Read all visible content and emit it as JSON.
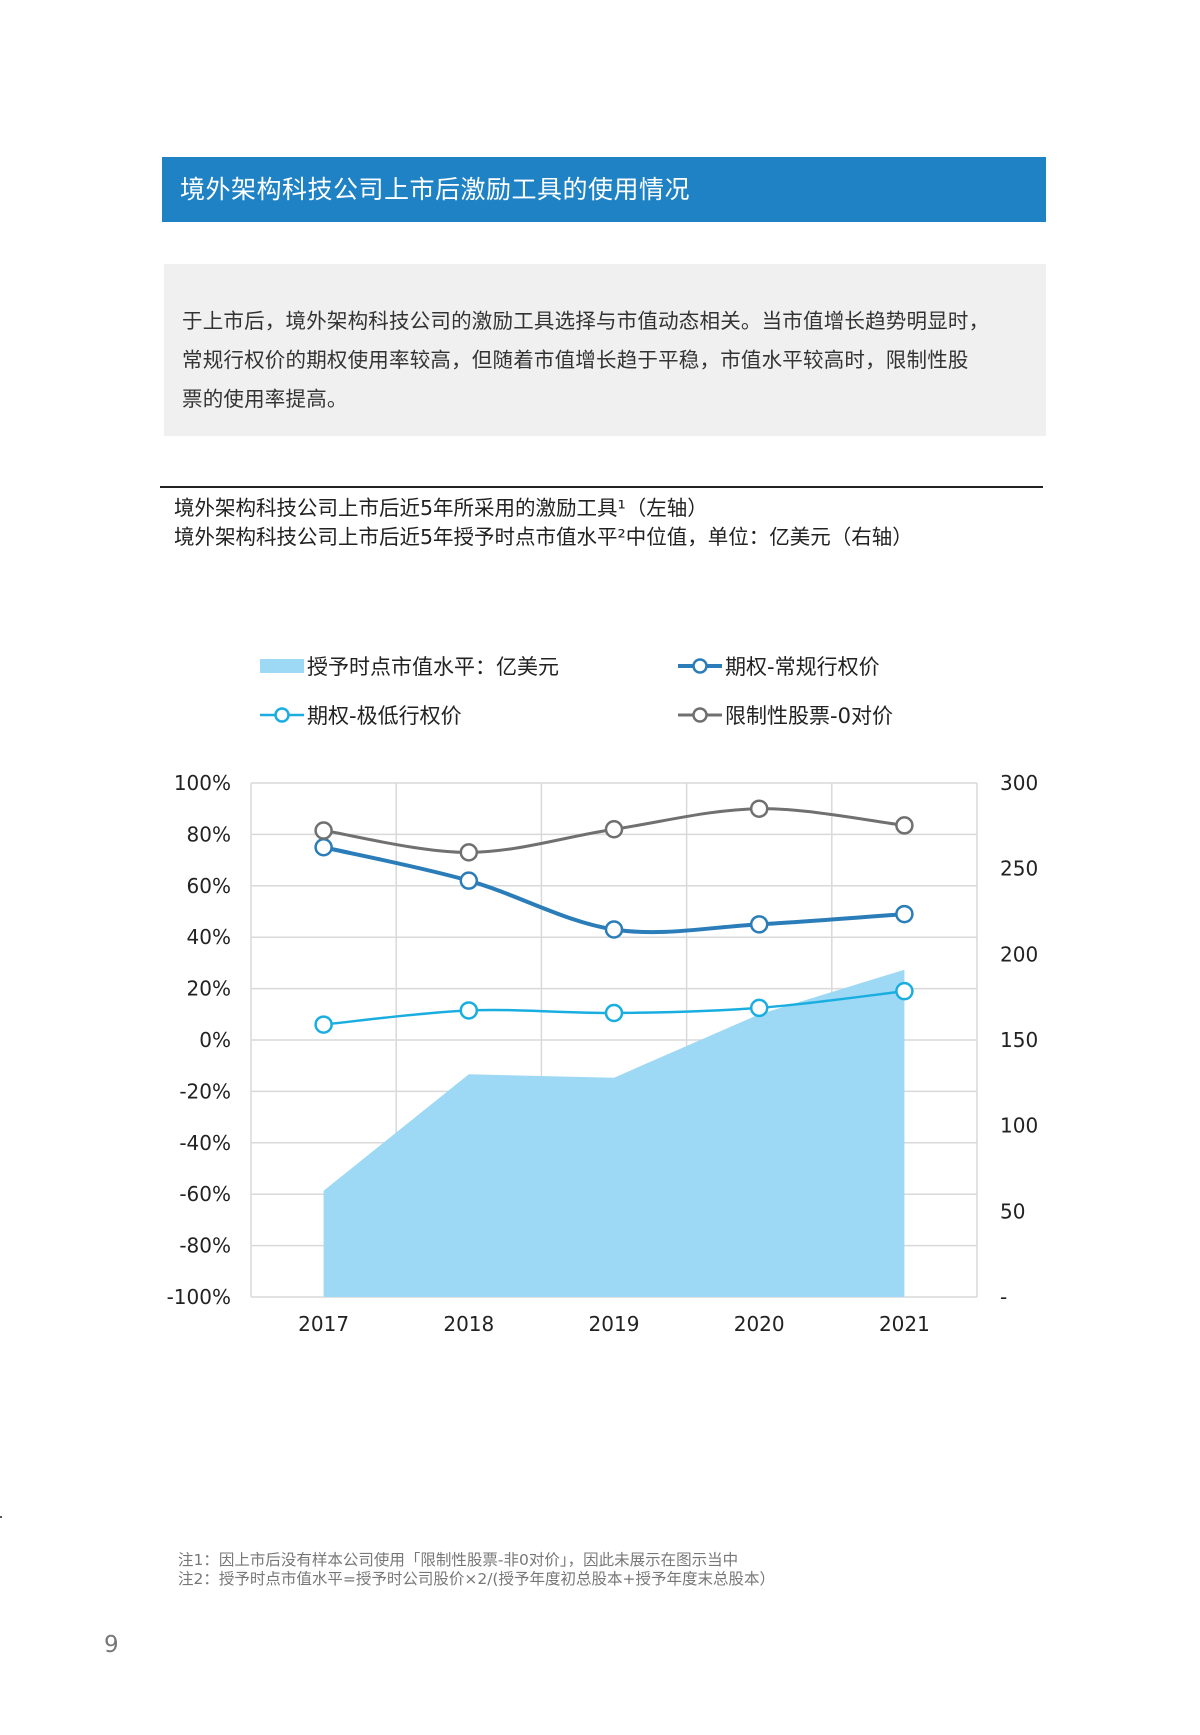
{
  "header": {
    "title": "境外架构科技公司上市后激励工具的使用情况"
  },
  "summary": {
    "lines": [
      "于上市后，境外架构科技公司的激励工具选择与市值动态相关。当市值增长趋势明显时，",
      "常规行权价的期权使用率较高，但随着市值增长趋于平稳，市值水平较高时，限制性股",
      "票的使用率提高。"
    ]
  },
  "chart_titles": {
    "line1": "境外架构科技公司上市后近5年所采用的激励工具¹（左轴）",
    "line2": "境外架构科技公司上市后近5年授予时点市值水平²中位值，单位：亿美元（右轴）"
  },
  "chart_data": {
    "type": "line",
    "categories": [
      "2017",
      "2018",
      "2019",
      "2020",
      "2021"
    ],
    "left_axis": {
      "ylim": [
        -100,
        100
      ],
      "ticks": [
        100,
        80,
        60,
        40,
        20,
        0,
        -20,
        -40,
        -60,
        -80,
        -100
      ],
      "tick_labels": [
        "100%",
        "80%",
        "60%",
        "40%",
        "20%",
        "0%",
        "-20%",
        "-40%",
        "-60%",
        "-80%",
        "-100%"
      ]
    },
    "right_axis": {
      "ylim": [
        0,
        300
      ],
      "ticks": [
        300,
        250,
        200,
        150,
        100,
        50,
        0
      ],
      "tick_labels": [
        "300",
        "250",
        "200",
        "150",
        "100",
        "50",
        "-"
      ]
    },
    "series": [
      {
        "name": "授予时点市值水平：亿美元",
        "kind": "area",
        "axis": "right",
        "color": "#9dd9f5",
        "values": [
          62,
          130,
          128,
          165,
          191
        ]
      },
      {
        "name": "期权-常规行权价",
        "kind": "line",
        "axis": "left",
        "color": "#2a7db8",
        "stroke_width": 4,
        "values": [
          75,
          62,
          43,
          45,
          49
        ]
      },
      {
        "name": "期权-极低行权价",
        "kind": "line",
        "axis": "left",
        "color": "#1aaee0",
        "stroke_width": 2.5,
        "values": [
          6,
          11.5,
          10.5,
          12.5,
          19
        ]
      },
      {
        "name": "限制性股票-0对价",
        "kind": "line",
        "axis": "left",
        "color": "#707070",
        "stroke_width": 3,
        "values": [
          81.5,
          73,
          82,
          90,
          83.5
        ]
      }
    ],
    "grid": true,
    "legend_position": "top"
  },
  "notes": {
    "note1": "注1：因上市后没有样本公司使用「限制性股票-非0对价」，因此未展示在图示当中",
    "note2": "注2：授予时点市值水平=授予时公司股价×2/(授予年度初总股本+授予年度末总股本）"
  },
  "page_number": "9"
}
